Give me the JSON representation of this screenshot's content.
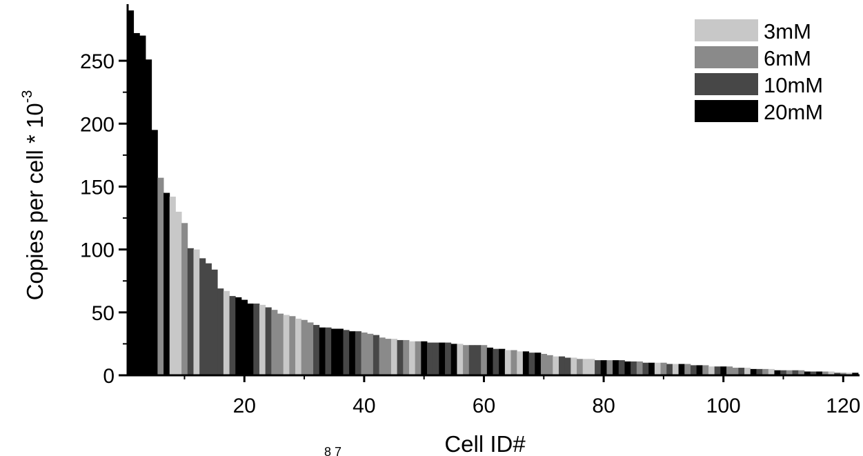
{
  "chart_data": {
    "type": "bar",
    "xlabel": "Cell ID#",
    "ylabel_main": "Copies per cell * 10",
    "ylabel_exp": "-3",
    "ylim": [
      0,
      295
    ],
    "xlim": [
      0.5,
      122.5
    ],
    "xticks": [
      20,
      40,
      60,
      80,
      100,
      120
    ],
    "yticks": [
      0,
      50,
      100,
      150,
      200,
      250
    ],
    "grid": false,
    "legend_position": "top-right",
    "legend": [
      {
        "name": "3mM",
        "color": "#c8c8c8"
      },
      {
        "name": "6mM",
        "color": "#8a8a8a"
      },
      {
        "name": "10mM",
        "color": "#474747"
      },
      {
        "name": "20mM",
        "color": "#000000"
      }
    ],
    "x": [
      1,
      2,
      3,
      4,
      5,
      6,
      7,
      8,
      9,
      10,
      11,
      12,
      13,
      14,
      15,
      16,
      17,
      18,
      19,
      20,
      21,
      22,
      23,
      24,
      25,
      26,
      27,
      28,
      29,
      30,
      31,
      32,
      33,
      34,
      35,
      36,
      37,
      38,
      39,
      40,
      41,
      42,
      43,
      44,
      45,
      46,
      47,
      48,
      49,
      50,
      51,
      52,
      53,
      54,
      55,
      56,
      57,
      58,
      59,
      60,
      61,
      62,
      63,
      64,
      65,
      66,
      67,
      68,
      69,
      70,
      71,
      72,
      73,
      74,
      75,
      76,
      77,
      78,
      79,
      80,
      81,
      82,
      83,
      84,
      85,
      86,
      87,
      88,
      89,
      90,
      91,
      92,
      93,
      94,
      95,
      96,
      97,
      98,
      99,
      100,
      101,
      102,
      103,
      104,
      105,
      106,
      107,
      108,
      109,
      110,
      111,
      112,
      113,
      114,
      115,
      116,
      117,
      118,
      119,
      120,
      121,
      122
    ],
    "values": [
      290,
      272,
      270,
      251,
      195,
      157,
      145,
      142,
      130,
      121,
      101,
      100,
      93,
      89,
      84,
      69,
      67,
      63,
      62,
      60,
      57,
      57,
      56,
      54,
      52,
      49,
      48,
      47,
      45,
      44,
      42,
      40,
      38,
      38,
      37,
      37,
      36,
      35,
      35,
      34,
      33,
      32,
      30,
      29,
      29,
      28,
      28,
      27,
      27,
      27,
      26,
      26,
      26,
      26,
      25,
      25,
      24,
      24,
      24,
      24,
      22,
      21,
      21,
      20,
      20,
      19,
      19,
      18,
      18,
      17,
      16,
      15,
      15,
      14,
      14,
      13,
      13,
      13,
      12,
      12,
      12,
      12,
      12,
      11,
      11,
      11,
      10,
      10,
      10,
      10,
      9,
      9,
      9,
      9,
      8,
      8,
      8,
      7,
      7,
      7,
      7,
      6,
      6,
      6,
      5,
      5,
      5,
      5,
      4,
      4,
      4,
      4,
      4,
      3,
      3,
      3,
      3,
      3,
      2,
      2,
      2,
      2
    ],
    "series_index": [
      3,
      3,
      3,
      3,
      3,
      1,
      3,
      0,
      0,
      1,
      2,
      0,
      2,
      2,
      2,
      2,
      0,
      2,
      3,
      3,
      3,
      2,
      0,
      2,
      1,
      1,
      0,
      1,
      0,
      1,
      1,
      2,
      3,
      2,
      3,
      3,
      2,
      3,
      2,
      1,
      1,
      2,
      1,
      1,
      0,
      2,
      1,
      0,
      1,
      3,
      2,
      2,
      3,
      2,
      3,
      0,
      1,
      2,
      2,
      1,
      3,
      2,
      3,
      0,
      1,
      0,
      3,
      2,
      3,
      1,
      1,
      0,
      2,
      2,
      0,
      1,
      0,
      0,
      2,
      3,
      1,
      3,
      2,
      3,
      2,
      1,
      2,
      3,
      0,
      1,
      2,
      0,
      3,
      1,
      2,
      3,
      1,
      0,
      2,
      3,
      1,
      1,
      2,
      0,
      3,
      2,
      1,
      0,
      3,
      2,
      1,
      2,
      1,
      3,
      2,
      3,
      1,
      0,
      2,
      1,
      0,
      3
    ]
  },
  "stray_text": "8 7"
}
